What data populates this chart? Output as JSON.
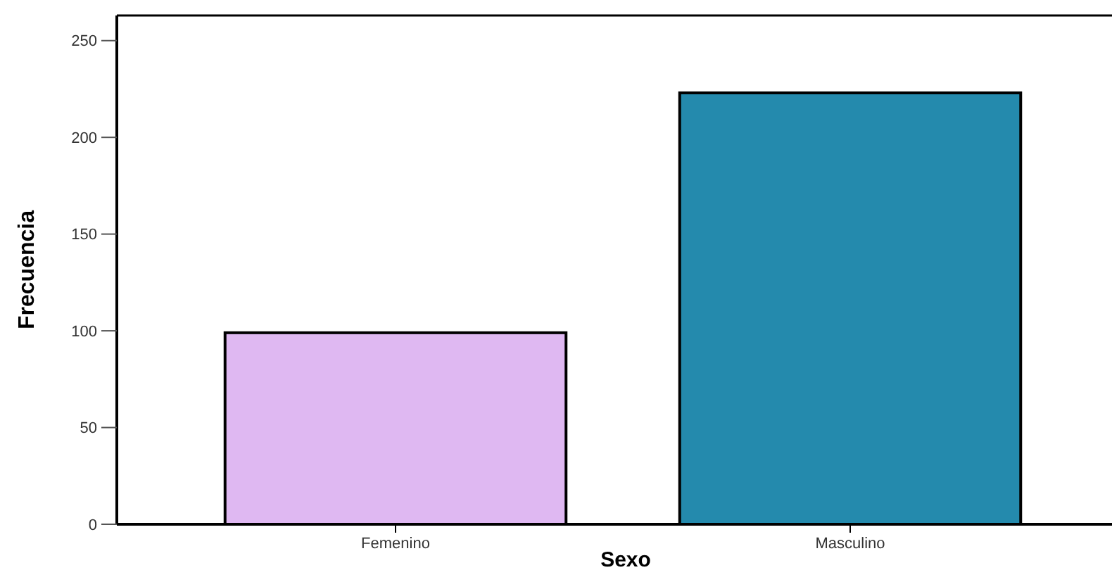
{
  "chart_data": {
    "type": "bar",
    "xlabel": "Sexo",
    "ylabel": "Frecuencia",
    "categories": [
      "Femenino",
      "Masculino"
    ],
    "values": [
      99,
      223
    ],
    "colors": [
      "#dfb8f2",
      "#248aad"
    ],
    "ylim": [
      0,
      263
    ],
    "yticks": [
      0,
      50,
      100,
      150,
      200,
      250
    ],
    "grid": false
  }
}
